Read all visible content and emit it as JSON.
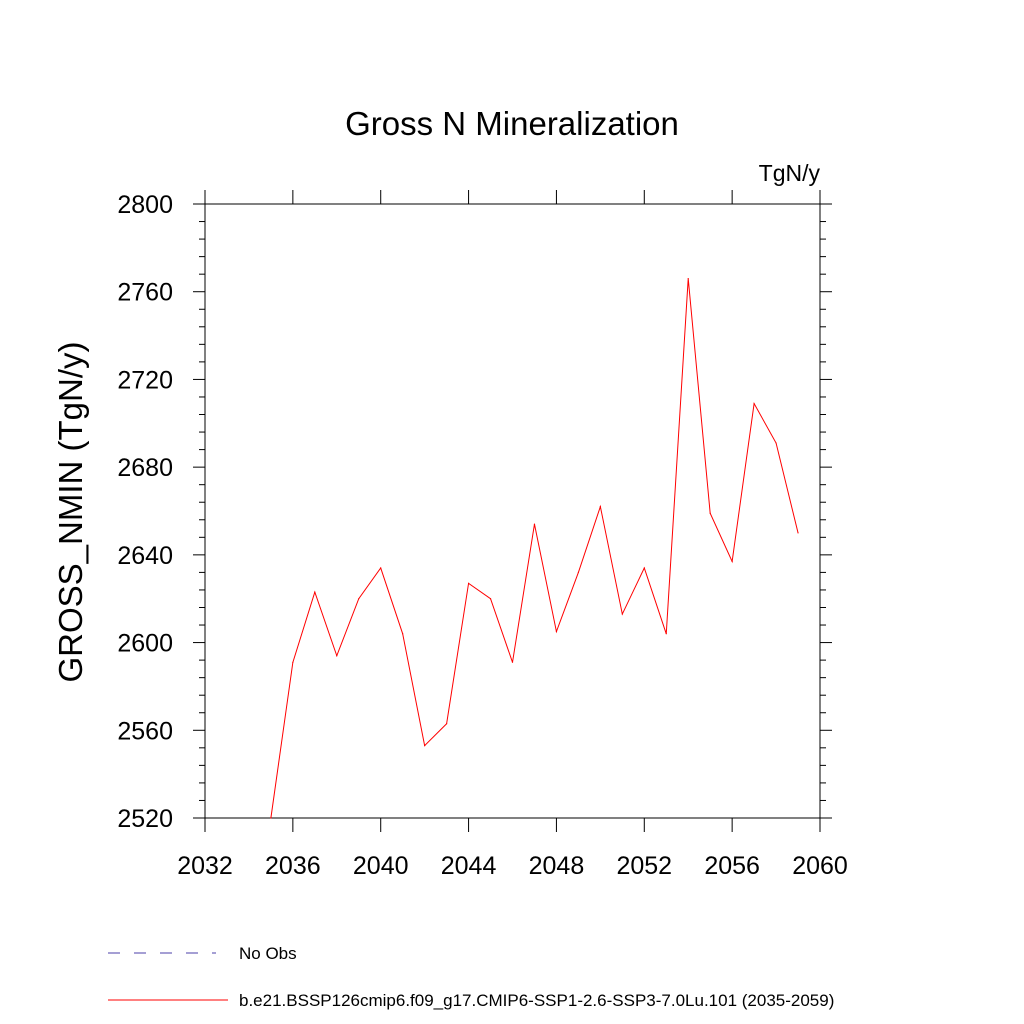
{
  "chart_data": {
    "type": "line",
    "title": "Gross N Mineralization",
    "units_label": "TgN/y",
    "ylabel": "GROSS_NMIN  (TgN/y)",
    "xlabel": "",
    "xlim": [
      2032,
      2060
    ],
    "ylim": [
      2520,
      2800
    ],
    "xticks": [
      2032,
      2036,
      2040,
      2044,
      2048,
      2052,
      2056,
      2060
    ],
    "yticks": [
      2520,
      2560,
      2600,
      2640,
      2680,
      2720,
      2760,
      2800
    ],
    "grid": false,
    "series": [
      {
        "name": "b.e21.BSSP126cmip6.f09_g17.CMIP6-SSP1-2.6-SSP3-7.0Lu.101 (2035-2059)",
        "color": "#ff0000",
        "style": "solid",
        "x": [
          2035,
          2036,
          2037,
          2038,
          2039,
          2040,
          2041,
          2042,
          2043,
          2044,
          2045,
          2046,
          2047,
          2048,
          2049,
          2050,
          2051,
          2052,
          2053,
          2054,
          2055,
          2056,
          2057,
          2058,
          2059
        ],
        "values": [
          2520,
          2591,
          2623,
          2594,
          2620,
          2634,
          2604,
          2553,
          2563,
          2627,
          2620,
          2591,
          2654,
          2605,
          2632,
          2662,
          2613,
          2634,
          2604,
          2766,
          2659,
          2637,
          2709,
          2691,
          2650
        ]
      }
    ],
    "legend": [
      {
        "label": "No Obs",
        "color": "#4b3fa8",
        "style": "dashed"
      },
      {
        "label": "b.e21.BSSP126cmip6.f09_g17.CMIP6-SSP1-2.6-SSP3-7.0Lu.101 (2035-2059)",
        "color": "#ff0000",
        "style": "solid"
      }
    ],
    "legend_position": "bottom-left"
  }
}
